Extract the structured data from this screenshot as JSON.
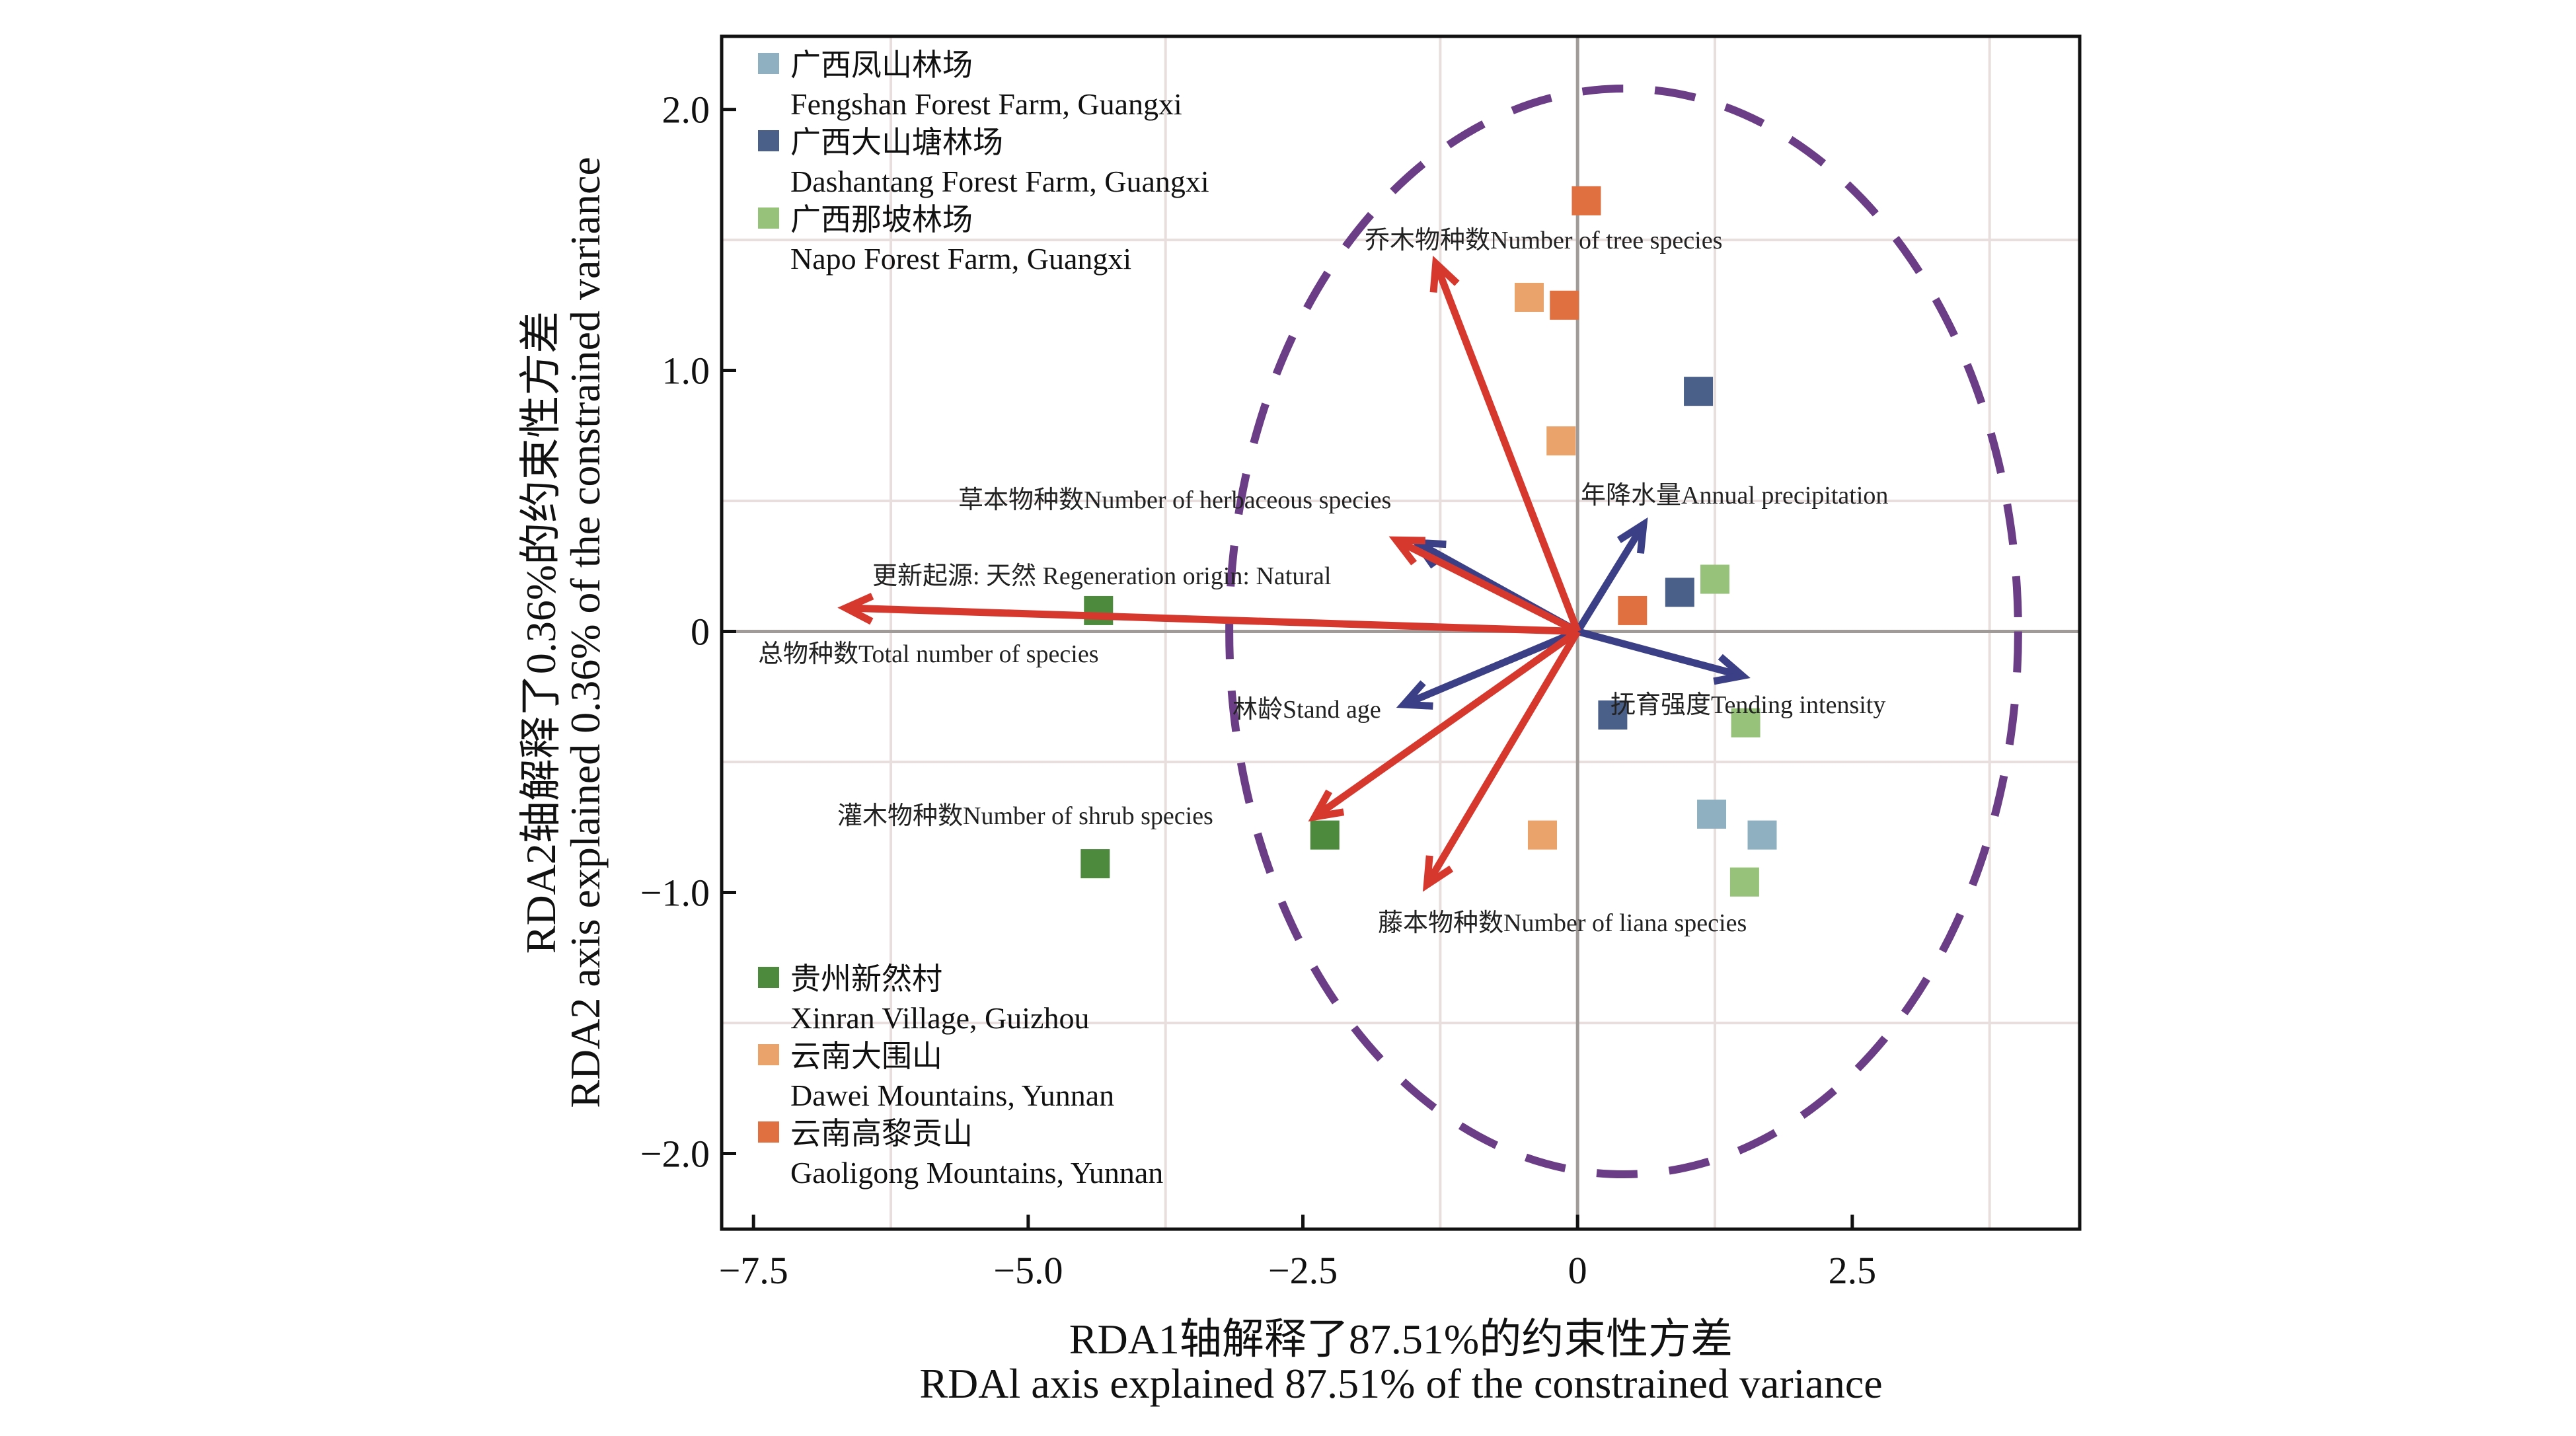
{
  "chart_data": {
    "type": "scatter",
    "subtype": "RDA biplot",
    "xlabel": [
      "RDA1轴解释了87.51%的约束性方差",
      "RDAl axis explained 87.51% of the constrained variance"
    ],
    "ylabel": [
      "RDA2轴解释了0.36%的约束性方差",
      "RDA2 axis explained 0.36% of the constrained variance"
    ],
    "xlim": [
      -7.79,
      4.57
    ],
    "ylim": [
      -2.29,
      2.28
    ],
    "xticks": [
      -7.5,
      -5.0,
      -2.5,
      0,
      2.5
    ],
    "xtick_labels": [
      "−7.5",
      "−5.0",
      "−2.5",
      "0",
      "2.5"
    ],
    "yticks": [
      2.0,
      1.0,
      0,
      -1.0,
      -2.0
    ],
    "ytick_labels": [
      "2.0",
      "1.0",
      "0",
      "−1.0",
      "−2.0"
    ],
    "grid": true,
    "legend_top": [
      {
        "zh": "广西凤山林场",
        "en": "Fengshan Forest Farm, Guangxi",
        "color": "#8fb0c0"
      },
      {
        "zh": "广西大山塘林场",
        "en": "Dashantang Forest Farm, Guangxi",
        "color": "#4a6089"
      },
      {
        "zh": "广西那坡林场",
        "en": "Napo Forest Farm, Guangxi",
        "color": "#96c27a"
      }
    ],
    "legend_bottom": [
      {
        "zh": "贵州新然村",
        "en": "Xinran Village, Guizhou",
        "color": "#4e8a3e"
      },
      {
        "zh": "云南大围山",
        "en": "Dawei Mountains, Yunnan",
        "color": "#eaa36a"
      },
      {
        "zh": "云南高黎贡山",
        "en": "Gaoligong Mountains, Yunnan",
        "color": "#e07040"
      }
    ],
    "series": [
      {
        "name": "Fengshan Forest Farm, Guangxi",
        "color": "#8fb0c0",
        "points": [
          [
            1.22,
            -0.7
          ],
          [
            1.68,
            -0.78
          ]
        ]
      },
      {
        "name": "Dashantang Forest Farm, Guangxi",
        "color": "#4a6089",
        "points": [
          [
            1.1,
            0.92
          ],
          [
            0.93,
            0.15
          ],
          [
            0.32,
            -0.32
          ]
        ]
      },
      {
        "name": "Napo Forest Farm, Guangxi",
        "color": "#96c27a",
        "points": [
          [
            1.25,
            0.2
          ],
          [
            1.53,
            -0.35
          ],
          [
            1.52,
            -0.96
          ]
        ]
      },
      {
        "name": "Xinran Village, Guizhou",
        "color": "#4e8a3e",
        "points": [
          [
            -4.36,
            0.08
          ],
          [
            -4.39,
            -0.89
          ],
          [
            -2.3,
            -0.78
          ]
        ]
      },
      {
        "name": "Dawei Mountains, Yunnan",
        "color": "#eaa36a",
        "points": [
          [
            -0.44,
            1.28
          ],
          [
            -0.15,
            0.73
          ],
          [
            -0.32,
            -0.78
          ]
        ]
      },
      {
        "name": "Gaoligong Mountains, Yunnan",
        "color": "#e07040",
        "points": [
          [
            0.08,
            1.65
          ],
          [
            -0.12,
            1.25
          ],
          [
            0.5,
            0.08
          ]
        ]
      }
    ],
    "response_arrows": {
      "color": "#d6382e",
      "items": [
        {
          "label": "总物种数Total number of species",
          "x": -6.66,
          "y": 0.09
        },
        {
          "label": "乔木物种数Number of tree species",
          "x": -1.29,
          "y": 1.41
        },
        {
          "label": "草本物种数Number of herbaceous species",
          "x": -1.65,
          "y": 0.35
        },
        {
          "label": "灌木物种数Number of shrub species",
          "x": -2.39,
          "y": -0.71
        },
        {
          "label": "藤本物种数Number of liana species",
          "x": -1.37,
          "y": -0.97
        }
      ]
    },
    "explanatory_arrows": {
      "color": "#3b3f86",
      "items": [
        {
          "label": "更新起源: 天然 Regeneration origin: Natural",
          "x": -1.46,
          "y": 0.34
        },
        {
          "label": "年降水量Annual precipitation",
          "x": 0.6,
          "y": 0.41
        },
        {
          "label": "抚育强度Tending intensity",
          "x": 1.5,
          "y": -0.17
        },
        {
          "label": "林龄Stand age",
          "x": -1.58,
          "y": -0.28
        }
      ]
    },
    "ellipse": {
      "cx": 0.42,
      "cy": 0.0,
      "rx": 3.59,
      "ry": 2.08,
      "color": "#6a3d86",
      "style": "dashed"
    }
  }
}
